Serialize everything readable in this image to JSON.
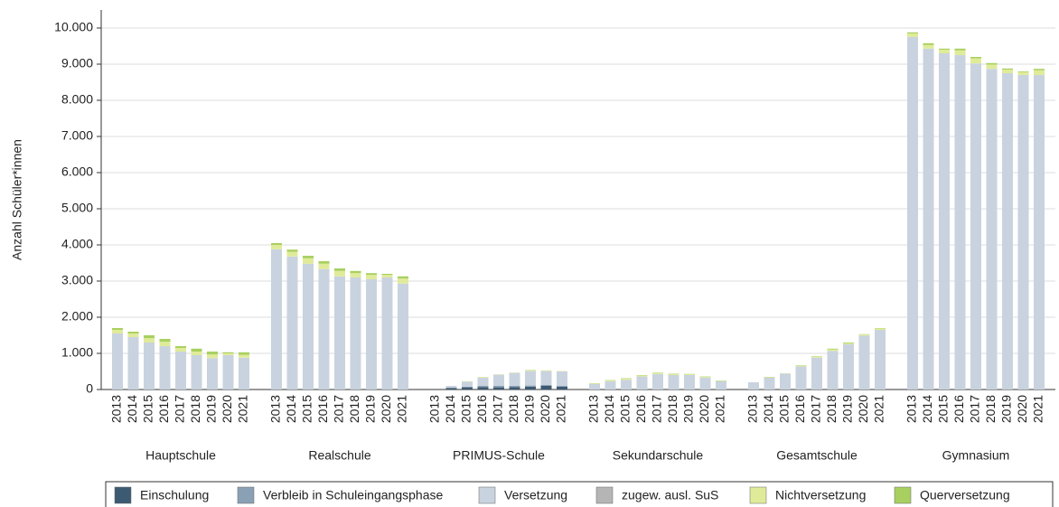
{
  "chart_data": {
    "type": "stacked-bar",
    "y_label": "Anzahl Schüler*innen",
    "groups": [
      "Hauptschule",
      "Realschule",
      "PRIMUS-Schule",
      "Sekundarschule",
      "Gesamtschule",
      "Gymnasium"
    ],
    "categories": [
      "2013",
      "2014",
      "2015",
      "2016",
      "2017",
      "2018",
      "2019",
      "2020",
      "2021"
    ],
    "ylim": [
      0,
      10500
    ],
    "yticks": [
      0,
      {
        "value": 1000,
        "label": "1.000"
      },
      {
        "value": 2000,
        "label": "2.000"
      },
      {
        "value": 3000,
        "label": "3.000"
      },
      {
        "value": 4000,
        "label": "4.000"
      },
      {
        "value": 5000,
        "label": "5.000"
      },
      {
        "value": 6000,
        "label": "6.000"
      },
      {
        "value": 7000,
        "label": "7.000"
      },
      {
        "value": 8000,
        "label": "8.000"
      },
      {
        "value": 9000,
        "label": "9.000"
      },
      {
        "value": 10000,
        "label": "10.000"
      }
    ],
    "grid": true,
    "legend": "bottom",
    "series": [
      {
        "name": "Einschulung",
        "color": "#3d5a73",
        "values": [
          [
            0,
            0,
            0,
            0,
            0,
            0,
            0,
            0,
            0
          ],
          [
            0,
            0,
            0,
            0,
            0,
            0,
            0,
            0,
            0
          ],
          [
            0,
            40,
            60,
            70,
            60,
            70,
            80,
            100,
            80
          ],
          [
            0,
            0,
            0,
            0,
            0,
            0,
            0,
            0,
            0
          ],
          [
            0,
            0,
            0,
            0,
            0,
            0,
            0,
            0,
            0
          ],
          [
            0,
            0,
            0,
            0,
            0,
            0,
            0,
            0,
            0
          ]
        ]
      },
      {
        "name": "Verbleib in Schuleingangsphase",
        "color": "#8aa0b5",
        "values": [
          [
            0,
            0,
            0,
            0,
            0,
            0,
            0,
            0,
            0
          ],
          [
            0,
            0,
            0,
            0,
            0,
            0,
            0,
            0,
            0
          ],
          [
            0,
            10,
            20,
            30,
            40,
            30,
            30,
            30,
            20
          ],
          [
            0,
            0,
            0,
            0,
            0,
            0,
            0,
            0,
            0
          ],
          [
            0,
            0,
            0,
            0,
            0,
            0,
            0,
            0,
            0
          ],
          [
            0,
            0,
            0,
            0,
            0,
            0,
            0,
            0,
            0
          ]
        ]
      },
      {
        "name": "Versetzung",
        "color": "#c9d3df",
        "values": [
          [
            1550,
            1450,
            1300,
            1200,
            1050,
            950,
            870,
            950,
            880
          ],
          [
            3880,
            3680,
            3480,
            3330,
            3130,
            3100,
            3050,
            3100,
            2930
          ],
          [
            0,
            50,
            140,
            230,
            310,
            360,
            400,
            380,
            400
          ],
          [
            150,
            230,
            270,
            360,
            430,
            400,
            400,
            330,
            230
          ],
          [
            200,
            330,
            440,
            640,
            880,
            1070,
            1250,
            1490,
            1650
          ],
          [
            9750,
            9430,
            9300,
            9250,
            9020,
            8870,
            8750,
            8700,
            8700
          ]
        ]
      },
      {
        "name": "zugew. ausl. SuS",
        "color": "#b5b5b5",
        "values": [
          [
            0,
            0,
            0,
            0,
            0,
            0,
            0,
            0,
            0
          ],
          [
            0,
            0,
            0,
            0,
            0,
            0,
            0,
            0,
            0
          ],
          [
            0,
            0,
            0,
            0,
            0,
            0,
            0,
            0,
            0
          ],
          [
            0,
            0,
            0,
            0,
            0,
            0,
            0,
            0,
            0
          ],
          [
            0,
            0,
            0,
            0,
            0,
            0,
            0,
            0,
            0
          ],
          [
            0,
            0,
            0,
            0,
            0,
            0,
            0,
            0,
            0
          ]
        ]
      },
      {
        "name": "Nichtversetzung",
        "color": "#e0eb9a",
        "values": [
          [
            100,
            100,
            120,
            120,
            100,
            100,
            100,
            50,
            80
          ],
          [
            120,
            130,
            150,
            150,
            150,
            120,
            120,
            70,
            140
          ],
          [
            0,
            0,
            10,
            20,
            10,
            10,
            20,
            20,
            10
          ],
          [
            10,
            20,
            30,
            30,
            30,
            30,
            20,
            20,
            10
          ],
          [
            0,
            10,
            10,
            20,
            30,
            40,
            30,
            30,
            40
          ],
          [
            100,
            100,
            100,
            130,
            140,
            120,
            100,
            80,
            130
          ]
        ]
      },
      {
        "name": "Querversetzung",
        "color": "#a8d060",
        "values": [
          [
            50,
            50,
            80,
            80,
            50,
            80,
            80,
            30,
            70
          ],
          [
            50,
            60,
            70,
            70,
            70,
            60,
            50,
            30,
            60
          ],
          [
            0,
            0,
            0,
            0,
            0,
            0,
            10,
            0,
            0
          ],
          [
            10,
            10,
            10,
            10,
            10,
            10,
            10,
            10,
            10
          ],
          [
            0,
            10,
            0,
            10,
            10,
            20,
            20,
            10,
            10
          ],
          [
            30,
            50,
            30,
            50,
            40,
            40,
            30,
            20,
            40
          ]
        ]
      }
    ]
  }
}
